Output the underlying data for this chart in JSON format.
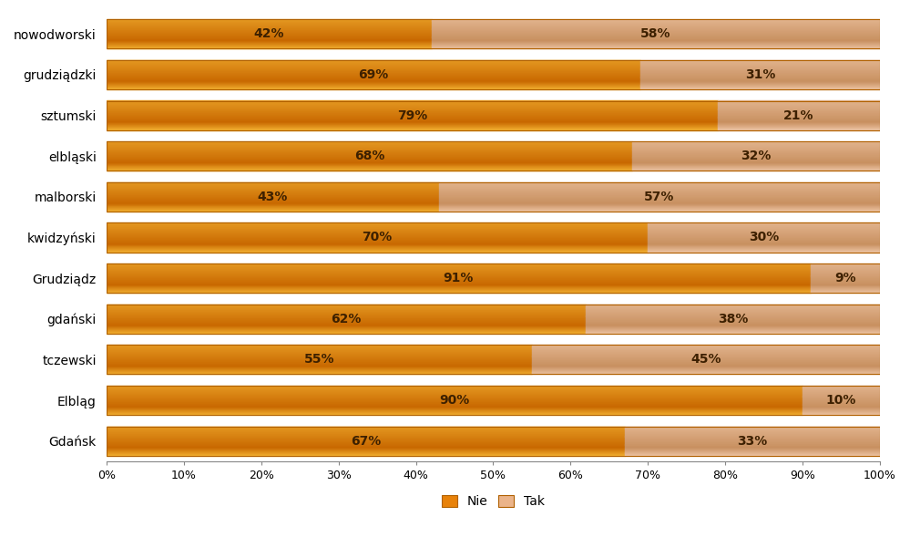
{
  "categories": [
    "nowodworski",
    "grudziądzki",
    "sztumski",
    "elbląski",
    "malborski",
    "kwidzyński",
    "Grudziądz",
    "gdański",
    "tczewski",
    "Elbląg",
    "Gdańsk"
  ],
  "nie_values": [
    42,
    69,
    79,
    68,
    43,
    70,
    91,
    62,
    55,
    90,
    67
  ],
  "tak_values": [
    58,
    31,
    21,
    32,
    57,
    30,
    9,
    38,
    45,
    10,
    33
  ],
  "nie_color_top": "#F5A623",
  "nie_color_mid": "#E8820A",
  "nie_color_bot": "#D4700A",
  "tak_color_top": "#F5C8A0",
  "tak_color_mid": "#EAA878",
  "tak_color_bot": "#D99060",
  "nie_color": "#E8820A",
  "tak_color": "#EBB48A",
  "background_color": "#FFFFFF",
  "bar_height": 0.72,
  "legend_nie": "Nie",
  "legend_tak": "Tak",
  "xlabel_ticks": [
    0,
    10,
    20,
    30,
    40,
    50,
    60,
    70,
    80,
    90,
    100
  ],
  "text_color": "#3D2000",
  "figsize": [
    9.99,
    6.12
  ],
  "dpi": 100
}
